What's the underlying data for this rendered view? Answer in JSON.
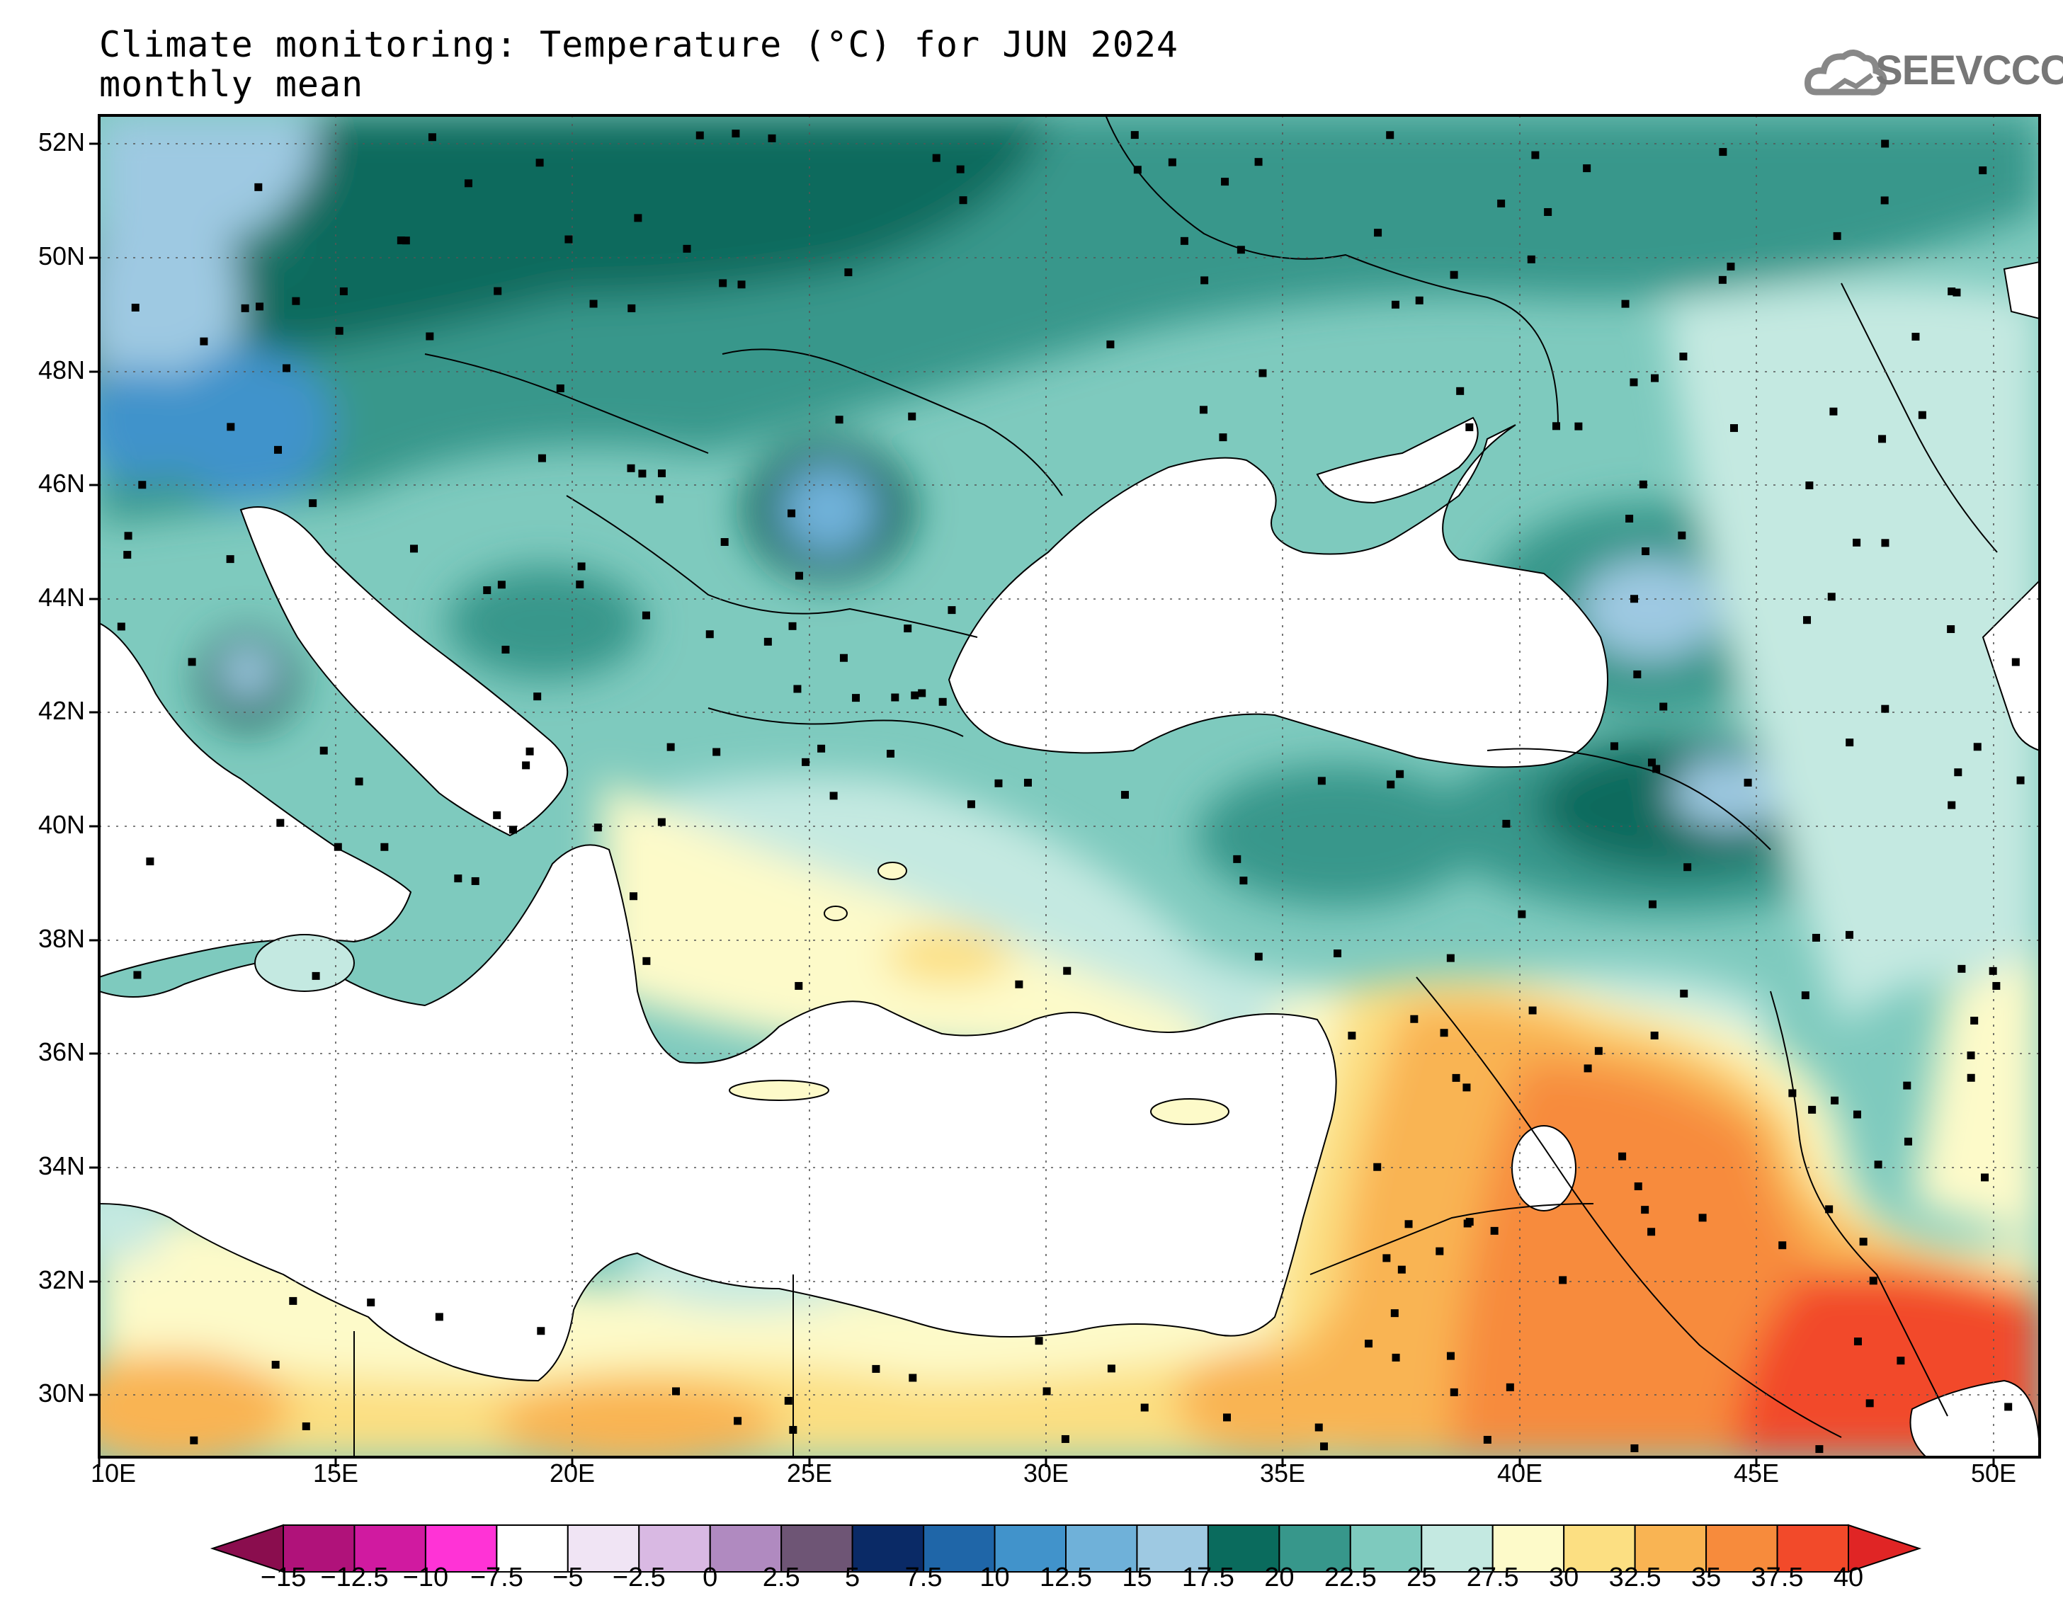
{
  "title": {
    "line1": "Climate monitoring: Temperature (°C) for JUN 2024",
    "line2": "monthly mean"
  },
  "logo": {
    "text": "SEEVCCC",
    "icon": "cloud-logo-icon",
    "color": "#777777"
  },
  "map": {
    "lon_range": [
      10,
      51
    ],
    "lat_range": [
      29,
      52.6
    ],
    "lat_labels": [
      "52N",
      "50N",
      "48N",
      "46N",
      "44N",
      "42N",
      "40N",
      "38N",
      "36N",
      "34N",
      "32N",
      "30N"
    ],
    "lon_labels": [
      "10E",
      "15E",
      "20E",
      "25E",
      "30E",
      "35E",
      "40E",
      "45E",
      "50E"
    ],
    "gridlines": true
  },
  "colorbar": {
    "colors": [
      "#8a0d4e",
      "#b0127a",
      "#d01aa0",
      "#ff33d6",
      "#ffffff",
      "#f0e4f4",
      "#d9b9e3",
      "#b08ac0",
      "#6e5575",
      "#0a2a66",
      "#1f66a8",
      "#4193cb",
      "#6fb1d9",
      "#9ec9e2",
      "#0a6b5d",
      "#37978b",
      "#7ecabe",
      "#c4e9e1",
      "#fdfac9",
      "#fcdf82",
      "#f9b453",
      "#f78b3c",
      "#f24a2a",
      "#e02525"
    ],
    "labels": [
      "−15",
      "−12.5",
      "−10",
      "−7.5",
      "−5",
      "−2.5",
      "0",
      "2.5",
      "5",
      "7.5",
      "10",
      "12.5",
      "15",
      "17.5",
      "20",
      "22.5",
      "25",
      "27.5",
      "30",
      "32.5",
      "35",
      "37.5",
      "40"
    ]
  }
}
